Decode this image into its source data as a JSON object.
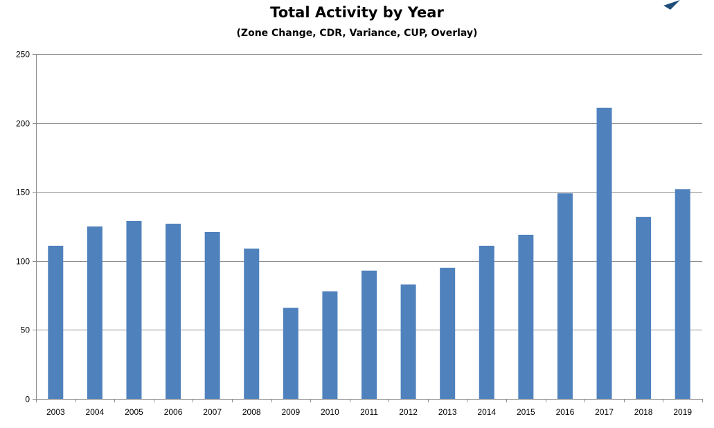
{
  "chart_data": {
    "type": "bar",
    "title": "Total Activity by Year",
    "subtitle": "(Zone Change, CDR, Variance, CUP, Overlay)",
    "categories": [
      "2003",
      "2004",
      "2005",
      "2006",
      "2007",
      "2008",
      "2009",
      "2010",
      "2011",
      "2012",
      "2013",
      "2014",
      "2015",
      "2016",
      "2017",
      "2018",
      "2019"
    ],
    "values": [
      111,
      125,
      129,
      127,
      121,
      109,
      66,
      78,
      93,
      83,
      95,
      111,
      119,
      149,
      211,
      132,
      152
    ],
    "y_ticks": [
      "0",
      "50",
      "100",
      "150",
      "200",
      "250"
    ],
    "ylim": [
      0,
      250
    ],
    "xlabel": "",
    "ylabel": "",
    "grid": true,
    "legend": "none",
    "colors": {
      "bar": "#4f81bd",
      "gridline": "#8c8c8c",
      "axis": "#8c8c8c",
      "corner_mark": "#1f4e79"
    }
  }
}
